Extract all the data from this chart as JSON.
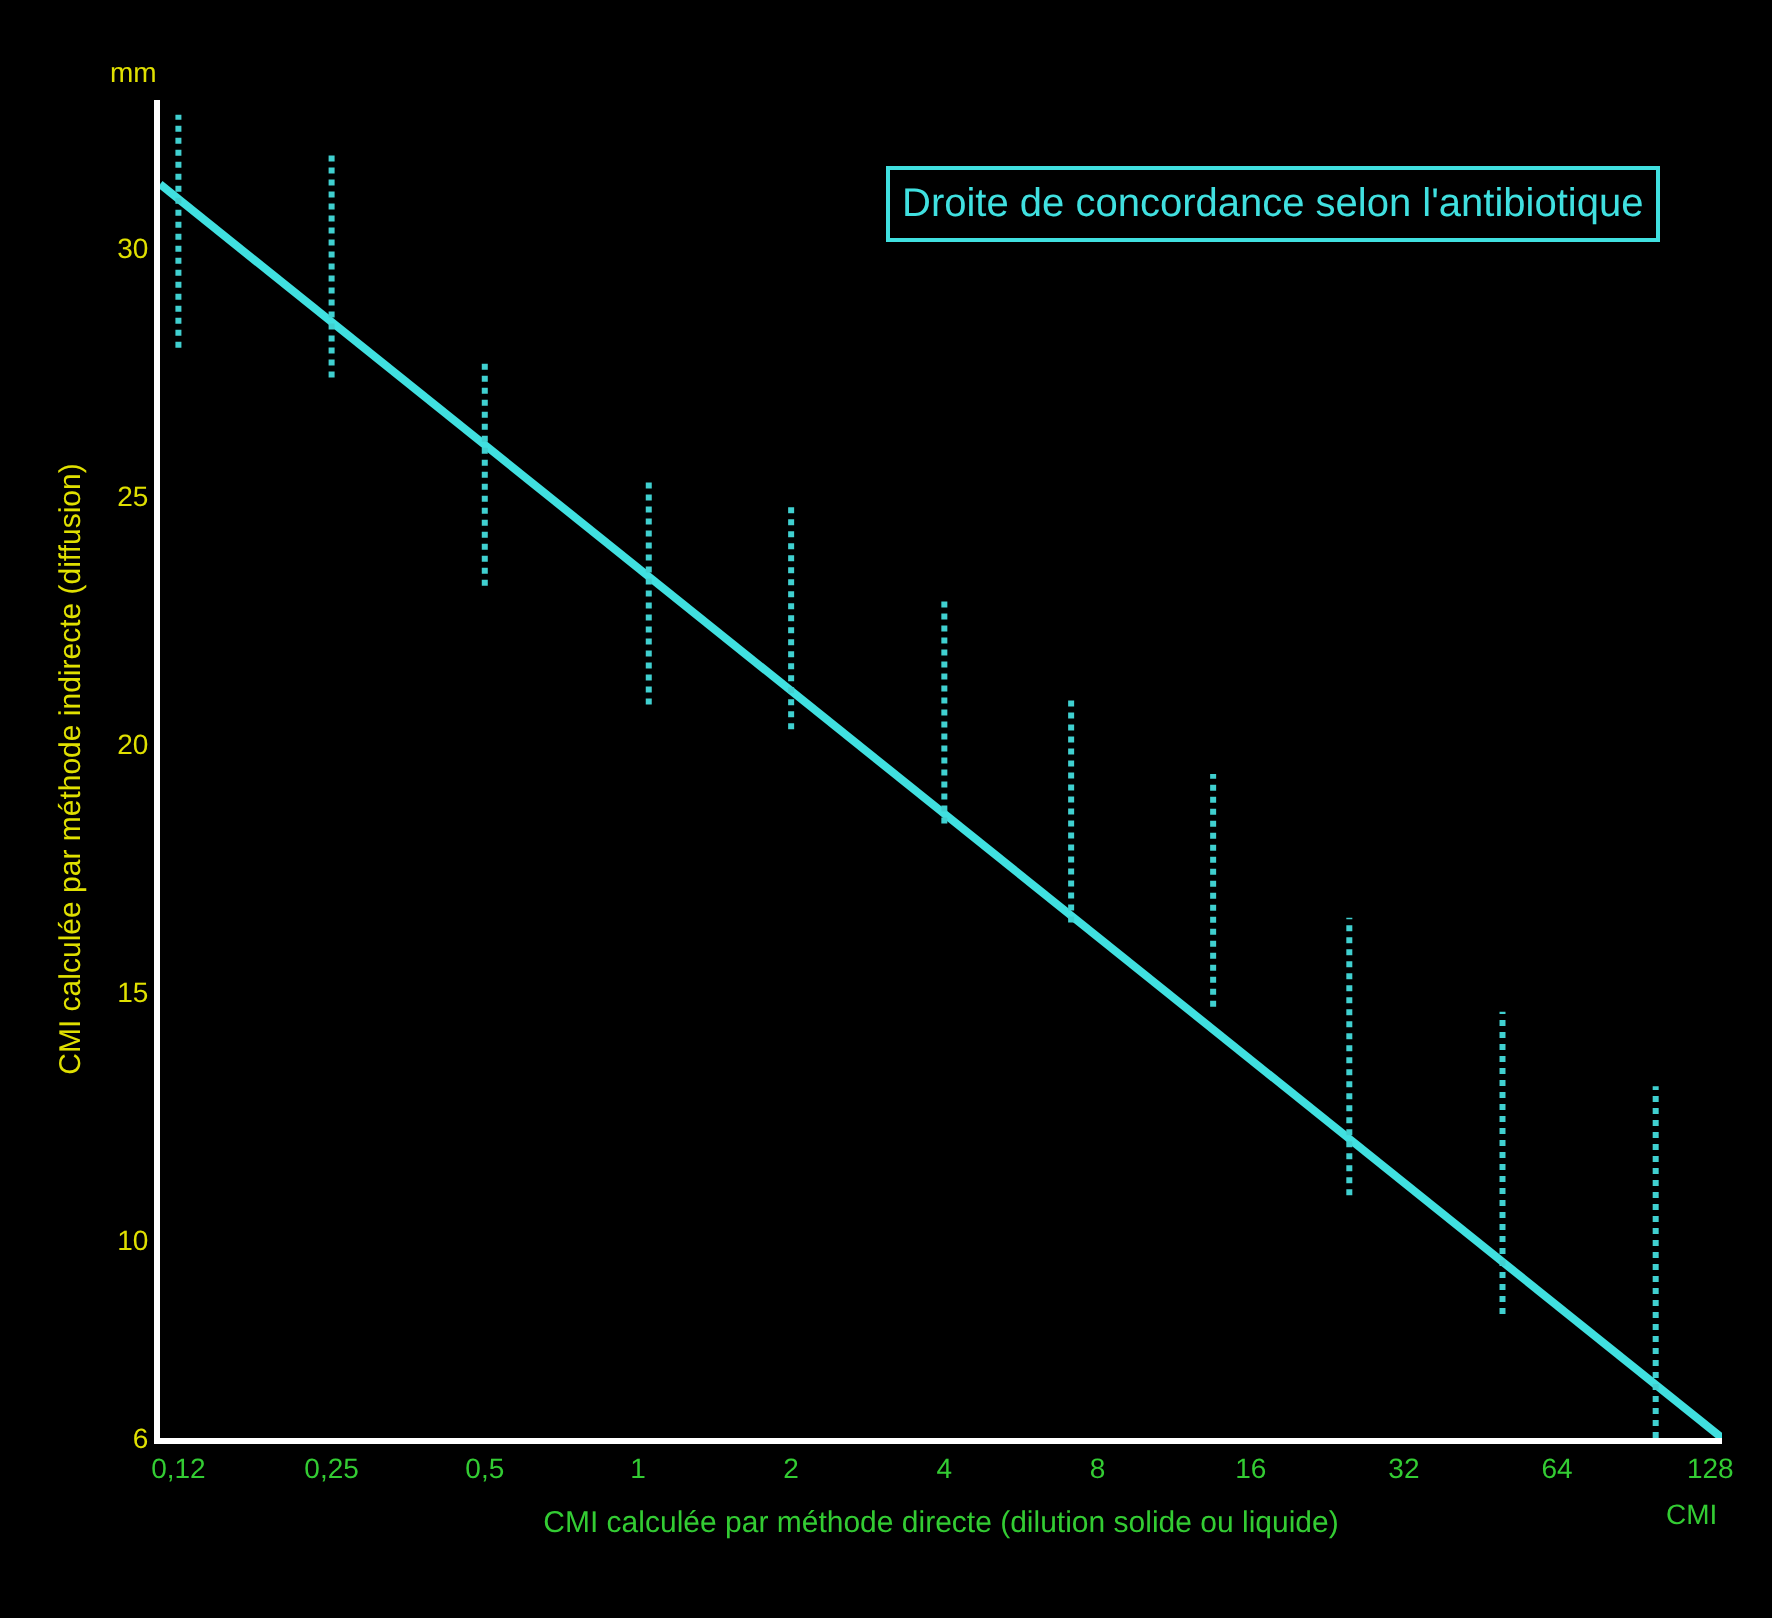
{
  "chart_data": {
    "type": "line",
    "title": "Droite de concordance selon l'antibiotique",
    "xlabel": "CMI calculée par méthode directe (dilution solide ou liquide)",
    "ylabel": "CMI calculée par méthode indirecte (diffusion)",
    "annotations": [
      "mm",
      "CMI"
    ],
    "log": "x",
    "grid": false,
    "xlim": [
      0.115,
      135
    ],
    "ylim": [
      6,
      33
    ],
    "xticks": [
      {
        "value": 0.125,
        "label": "0,12"
      },
      {
        "value": 0.25,
        "label": "0,25"
      },
      {
        "value": 0.5,
        "label": "0,5"
      },
      1,
      2,
      4,
      8,
      16,
      32,
      64,
      128
    ],
    "yticks": [
      6,
      10,
      15,
      20,
      25,
      30
    ],
    "series": [
      {
        "x": [
          0.115,
          135
        ],
        "values": [
          31.3,
          6
        ],
        "color": "#40e0e0",
        "line_style": "solid"
      },
      {
        "x": [
          0.125,
          0.125
        ],
        "values": [
          28.0,
          32.7
        ],
        "color": "#40d0d0",
        "line_style": "dotted"
      },
      {
        "x": [
          0.25,
          0.25
        ],
        "values": [
          27.4,
          31.9
        ],
        "color": "#40d0d0",
        "line_style": "dotted"
      },
      {
        "x": [
          0.5,
          0.5
        ],
        "values": [
          23.2,
          27.7
        ],
        "color": "#40d0d0",
        "line_style": "dotted"
      },
      {
        "x": [
          1.05,
          1.05
        ],
        "values": [
          20.8,
          25.3
        ],
        "color": "#40d0d0",
        "line_style": "dotted"
      },
      {
        "x": [
          2,
          2
        ],
        "values": [
          20.3,
          24.8
        ],
        "color": "#40d0d0",
        "line_style": "dotted"
      },
      {
        "x": [
          4,
          4
        ],
        "values": [
          18.4,
          23.0
        ],
        "color": "#40d0d0",
        "line_style": "dotted"
      },
      {
        "x": [
          7.1,
          7.1
        ],
        "values": [
          16.4,
          21.0
        ],
        "color": "#40d0d0",
        "line_style": "dotted"
      },
      {
        "x": [
          13.5,
          13.5
        ],
        "values": [
          14.7,
          19.4
        ],
        "color": "#40d0d0",
        "line_style": "dotted"
      },
      {
        "x": [
          25,
          25
        ],
        "values": [
          10.9,
          16.5
        ],
        "color": "#40d0d0",
        "line_style": "dotted"
      },
      {
        "x": [
          50,
          50
        ],
        "values": [
          8.5,
          14.6
        ],
        "color": "#40d0d0",
        "line_style": "dotted"
      },
      {
        "x": [
          100,
          100
        ],
        "values": [
          6,
          13.1
        ],
        "color": "#40d0d0",
        "line_style": "dotted"
      }
    ]
  }
}
